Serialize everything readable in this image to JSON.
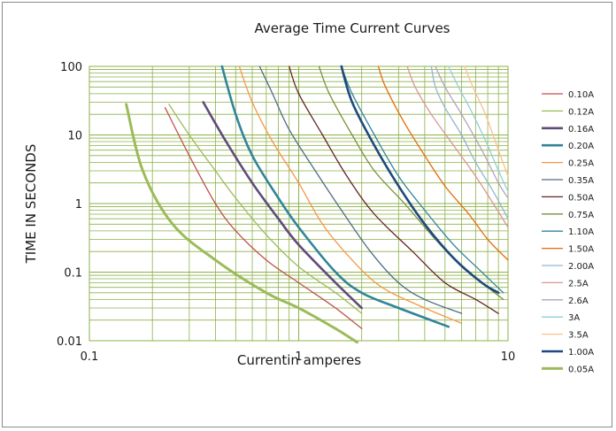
{
  "chart_data": {
    "type": "line",
    "title": "Average Time Current Curves",
    "xlabel": "Currentin amperes",
    "ylabel": "TIME IN SECONDS",
    "xscale": "log",
    "yscale": "log",
    "xlim": [
      0.1,
      10
    ],
    "ylim": [
      0.01,
      100
    ],
    "x_ticks": [
      "0.1",
      "1",
      "10"
    ],
    "y_ticks": [
      "0.01",
      "0.1",
      "1",
      "10",
      "100"
    ],
    "grid": "on",
    "grid_color": "#8db04a",
    "legend_position": "right",
    "series": [
      {
        "name": "0.10A",
        "color": "#c0504d",
        "width": 1.3,
        "points": [
          [
            0.23,
            25
          ],
          [
            0.3,
            5
          ],
          [
            0.4,
            1
          ],
          [
            0.5,
            0.4
          ],
          [
            0.7,
            0.15
          ],
          [
            1.0,
            0.07
          ],
          [
            1.5,
            0.03
          ],
          [
            2.0,
            0.015
          ]
        ]
      },
      {
        "name": "0.12A",
        "color": "#9bbb59",
        "width": 1.3,
        "points": [
          [
            0.24,
            28
          ],
          [
            0.3,
            10
          ],
          [
            0.4,
            3
          ],
          [
            0.5,
            1.2
          ],
          [
            0.7,
            0.35
          ],
          [
            1.0,
            0.12
          ],
          [
            1.5,
            0.05
          ],
          [
            2.0,
            0.025
          ]
        ]
      },
      {
        "name": "0.16A",
        "color": "#604a7b",
        "width": 2.6,
        "points": [
          [
            0.35,
            30
          ],
          [
            0.45,
            8
          ],
          [
            0.6,
            2
          ],
          [
            0.8,
            0.6
          ],
          [
            1.0,
            0.25
          ],
          [
            1.5,
            0.07
          ],
          [
            2.0,
            0.03
          ]
        ]
      },
      {
        "name": "0.20A",
        "color": "#31849b",
        "width": 2.6,
        "points": [
          [
            0.43,
            100
          ],
          [
            0.5,
            20
          ],
          [
            0.6,
            5
          ],
          [
            0.8,
            1.2
          ],
          [
            1.0,
            0.45
          ],
          [
            1.5,
            0.1
          ],
          [
            2.0,
            0.05
          ],
          [
            3.0,
            0.03
          ],
          [
            5.2,
            0.016
          ]
        ]
      },
      {
        "name": "0.25A",
        "color": "#f79646",
        "width": 1.3,
        "points": [
          [
            0.52,
            100
          ],
          [
            0.6,
            30
          ],
          [
            0.75,
            8
          ],
          [
            1.0,
            2
          ],
          [
            1.3,
            0.5
          ],
          [
            1.8,
            0.15
          ],
          [
            2.5,
            0.06
          ],
          [
            4.0,
            0.03
          ],
          [
            6.0,
            0.018
          ]
        ]
      },
      {
        "name": "0.35A",
        "color": "#4f6b8a",
        "width": 1.3,
        "points": [
          [
            0.65,
            100
          ],
          [
            0.75,
            40
          ],
          [
            0.9,
            12
          ],
          [
            1.2,
            3
          ],
          [
            1.6,
            0.8
          ],
          [
            2.2,
            0.2
          ],
          [
            3.0,
            0.07
          ],
          [
            4.0,
            0.04
          ],
          [
            6.0,
            0.025
          ]
        ]
      },
      {
        "name": "0.50A",
        "color": "#632523",
        "width": 1.3,
        "points": [
          [
            0.9,
            100
          ],
          [
            1.0,
            40
          ],
          [
            1.3,
            10
          ],
          [
            1.7,
            2.5
          ],
          [
            2.3,
            0.7
          ],
          [
            3.5,
            0.2
          ],
          [
            5.0,
            0.07
          ],
          [
            7.0,
            0.04
          ],
          [
            9.0,
            0.025
          ]
        ]
      },
      {
        "name": "0.75A",
        "color": "#76923c",
        "width": 1.3,
        "points": [
          [
            1.25,
            100
          ],
          [
            1.4,
            40
          ],
          [
            1.8,
            10
          ],
          [
            2.3,
            3
          ],
          [
            3.2,
            1
          ],
          [
            4.5,
            0.3
          ],
          [
            6.0,
            0.12
          ],
          [
            8.0,
            0.06
          ],
          [
            9.5,
            0.04
          ]
        ]
      },
      {
        "name": "1.10A",
        "color": "#31859c",
        "width": 1.3,
        "points": [
          [
            1.6,
            100
          ],
          [
            1.8,
            40
          ],
          [
            2.3,
            10
          ],
          [
            3.0,
            2.5
          ],
          [
            4.0,
            0.8
          ],
          [
            5.5,
            0.25
          ],
          [
            7.5,
            0.1
          ],
          [
            9.5,
            0.05
          ]
        ]
      },
      {
        "name": "1.50A",
        "color": "#e36c09",
        "width": 1.3,
        "points": [
          [
            2.4,
            100
          ],
          [
            2.6,
            50
          ],
          [
            3.2,
            15
          ],
          [
            4.0,
            5
          ],
          [
            5.0,
            1.8
          ],
          [
            6.5,
            0.7
          ],
          [
            8.0,
            0.3
          ],
          [
            10.0,
            0.15
          ]
        ]
      },
      {
        "name": "2.00A",
        "color": "#95b3d7",
        "width": 1.3,
        "points": [
          [
            4.3,
            100
          ],
          [
            4.5,
            50
          ],
          [
            5.0,
            25
          ],
          [
            6.0,
            10
          ],
          [
            7.0,
            4
          ],
          [
            8.5,
            1.5
          ],
          [
            10.0,
            0.6
          ]
        ]
      },
      {
        "name": "2.5A",
        "color": "#d99694",
        "width": 1.3,
        "points": [
          [
            3.3,
            100
          ],
          [
            3.6,
            50
          ],
          [
            4.3,
            20
          ],
          [
            5.5,
            7
          ],
          [
            7.0,
            2.5
          ],
          [
            8.5,
            1
          ],
          [
            10.0,
            0.45
          ]
        ]
      },
      {
        "name": "2.6A",
        "color": "#b2a1c7",
        "width": 1.3,
        "points": [
          [
            4.5,
            100
          ],
          [
            5.0,
            50
          ],
          [
            6.0,
            20
          ],
          [
            7.5,
            6
          ],
          [
            9.0,
            2
          ],
          [
            10.0,
            1.2
          ]
        ]
      },
      {
        "name": "3A",
        "color": "#93cddd",
        "width": 1.3,
        "points": [
          [
            5.2,
            100
          ],
          [
            5.8,
            50
          ],
          [
            6.8,
            20
          ],
          [
            8.0,
            7
          ],
          [
            9.0,
            3
          ],
          [
            10.0,
            1.5
          ]
        ]
      },
      {
        "name": "3.5A",
        "color": "#fac090",
        "width": 1.3,
        "points": [
          [
            6.2,
            100
          ],
          [
            6.8,
            50
          ],
          [
            7.8,
            20
          ],
          [
            9.0,
            6
          ],
          [
            10.0,
            2.5
          ]
        ]
      },
      {
        "name": "1.00A",
        "color": "#1f497d",
        "width": 2.6,
        "points": [
          [
            1.6,
            100
          ],
          [
            1.8,
            30
          ],
          [
            2.3,
            7
          ],
          [
            3.0,
            1.8
          ],
          [
            4.0,
            0.5
          ],
          [
            5.5,
            0.16
          ],
          [
            7.5,
            0.07
          ],
          [
            9.0,
            0.05
          ]
        ]
      },
      {
        "name": "0.05A",
        "color": "#9bbb59",
        "width": 3.0,
        "points": [
          [
            0.15,
            28
          ],
          [
            0.18,
            3
          ],
          [
            0.25,
            0.5
          ],
          [
            0.4,
            0.15
          ],
          [
            0.7,
            0.05
          ],
          [
            1.0,
            0.03
          ],
          [
            1.5,
            0.015
          ],
          [
            1.9,
            0.0095
          ]
        ]
      }
    ]
  }
}
